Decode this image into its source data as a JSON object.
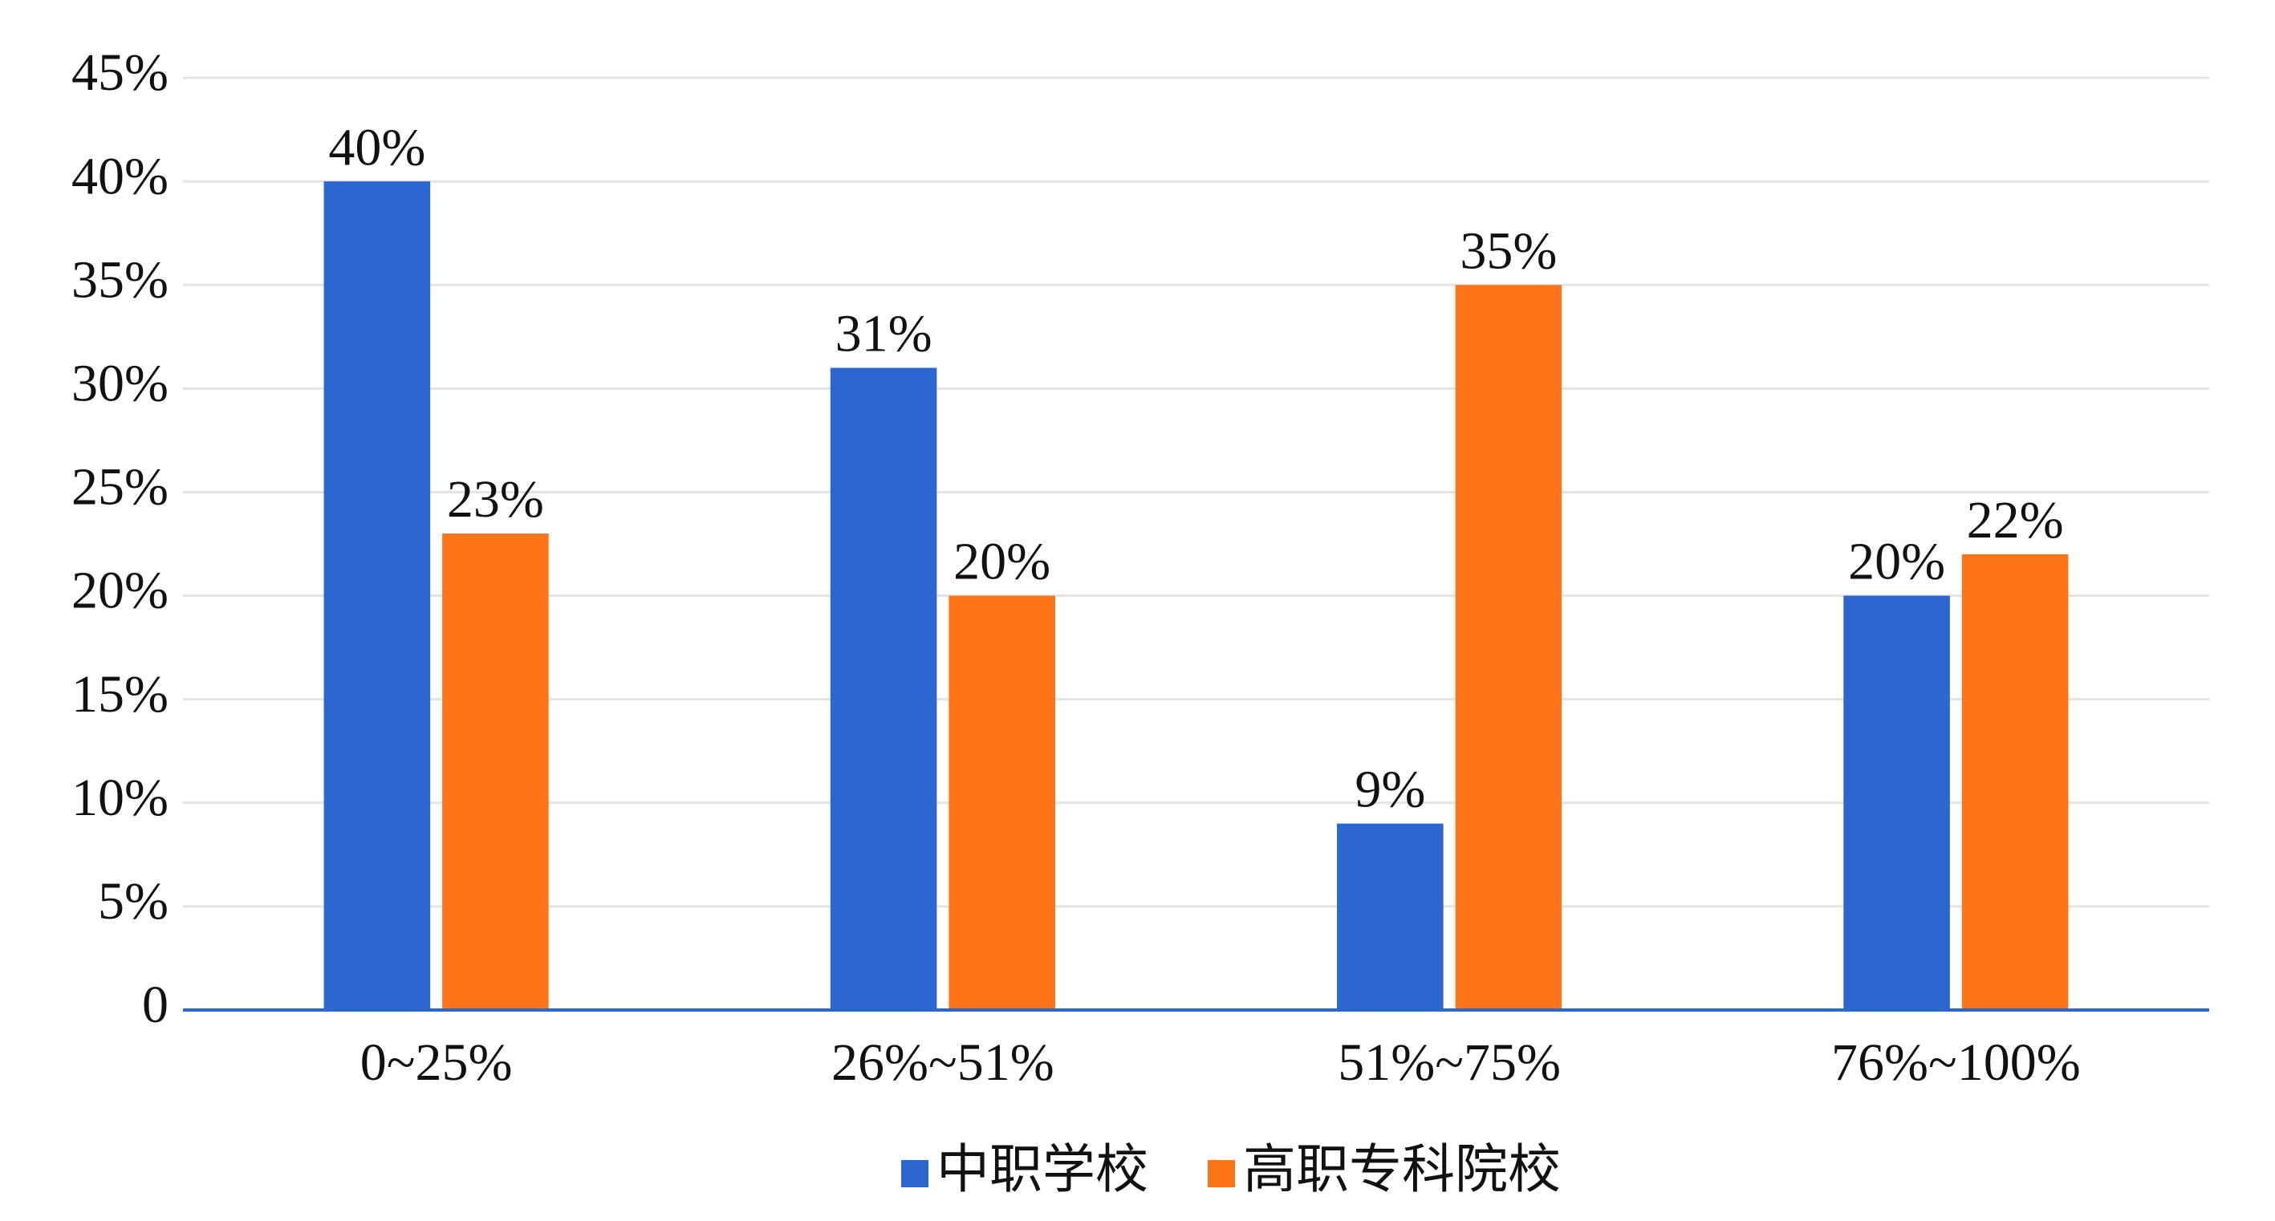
{
  "chart_data": {
    "type": "bar",
    "categories": [
      "0~25%",
      "26%~51%",
      "51%~75%",
      "76%~100%"
    ],
    "series": [
      {
        "name": "中职学校",
        "color": "#2c66cf",
        "values": [
          40,
          31,
          9,
          20
        ],
        "value_labels": [
          "40%",
          "31%",
          "9%",
          "20%"
        ]
      },
      {
        "name": "高职专科院校",
        "color": "#fd7419",
        "values": [
          23,
          20,
          35,
          22
        ],
        "value_labels": [
          "23%",
          "20%",
          "35%",
          "22%"
        ]
      }
    ],
    "ylim": [
      0,
      45
    ],
    "yticks": [
      0,
      {
        "value": 5,
        "label": "5%"
      },
      {
        "value": 10,
        "label": "10%"
      },
      {
        "value": 15,
        "label": "15%"
      },
      {
        "value": 20,
        "label": "20%"
      },
      {
        "value": 25,
        "label": "25%"
      },
      {
        "value": 30,
        "label": "30%"
      },
      {
        "value": 35,
        "label": "35%"
      },
      {
        "value": 40,
        "label": "40%"
      },
      {
        "value": 45,
        "label": "45%"
      }
    ],
    "grid": true,
    "legend": "bottom"
  }
}
